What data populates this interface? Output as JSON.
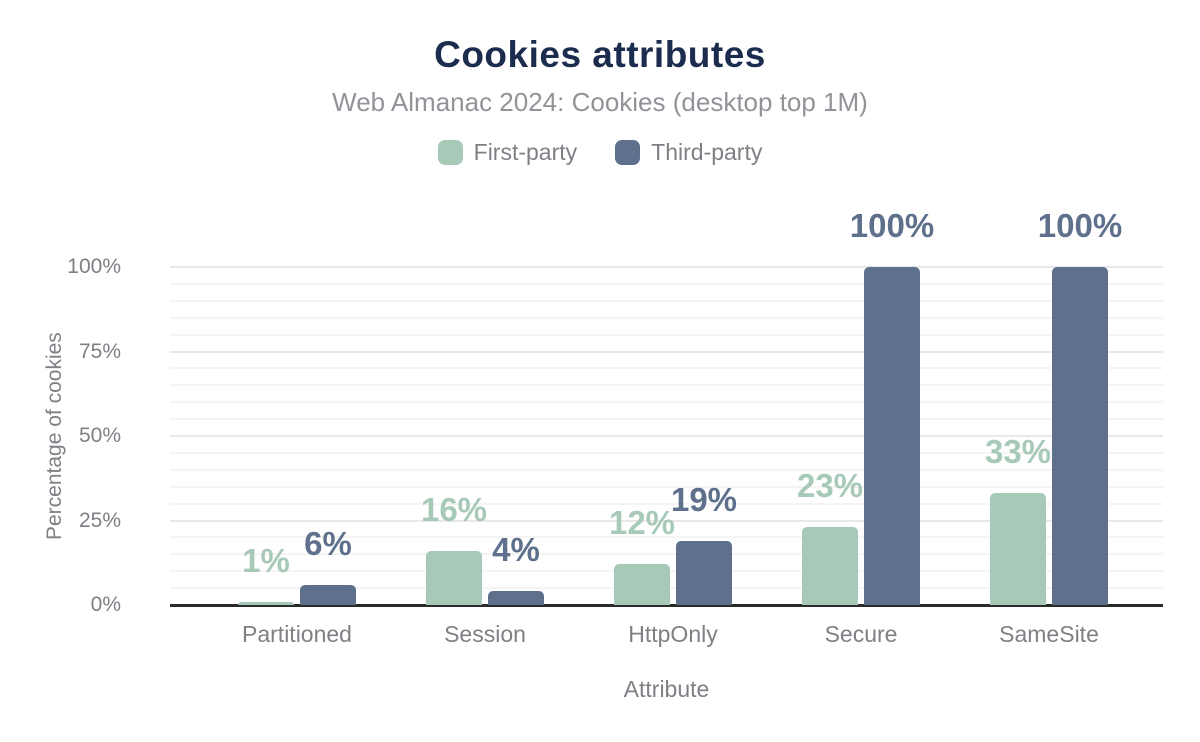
{
  "header": {
    "title": "Cookies attributes",
    "subtitle": "Web Almanac 2024: Cookies (desktop top 1M)"
  },
  "legend": {
    "items": [
      {
        "label": "First-party",
        "color": "#a7c9b8"
      },
      {
        "label": "Third-party",
        "color": "#5e708c"
      }
    ]
  },
  "chart_data": {
    "type": "bar",
    "title": "Cookies attributes",
    "subtitle": "Web Almanac 2024: Cookies (desktop top 1M)",
    "categories": [
      "Partitioned",
      "Session",
      "HttpOnly",
      "Secure",
      "SameSite"
    ],
    "series": [
      {
        "name": "First-party",
        "color": "#a7c9b8",
        "values": [
          1,
          16,
          12,
          23,
          33
        ],
        "labels": [
          "1%",
          "16%",
          "12%",
          "23%",
          "33%"
        ]
      },
      {
        "name": "Third-party",
        "color": "#5e708c",
        "values": [
          6,
          4,
          19,
          100,
          100
        ],
        "labels": [
          "6%",
          "4%",
          "19%",
          "100%",
          "100%"
        ]
      }
    ],
    "xlabel": "Attribute",
    "ylabel": "Percentage of cookies",
    "ylim": [
      0,
      100
    ],
    "yticks": [
      0,
      25,
      50,
      75,
      100
    ],
    "ytick_labels": [
      "0%",
      "25%",
      "50%",
      "75%",
      "100%"
    ],
    "grid": "horizontal minor every 5%, major every 25%",
    "legend_position": "top"
  },
  "colors": {
    "title_text": "#1c2c4e",
    "subtitle_text": "#909499",
    "axis_text": "#7d8085",
    "grid_minor": "#f4f4f4",
    "grid_major": "#e8e8e8",
    "baseline": "#2b2b2b",
    "first_party": "#a7c9b8",
    "third_party": "#5e708c"
  }
}
